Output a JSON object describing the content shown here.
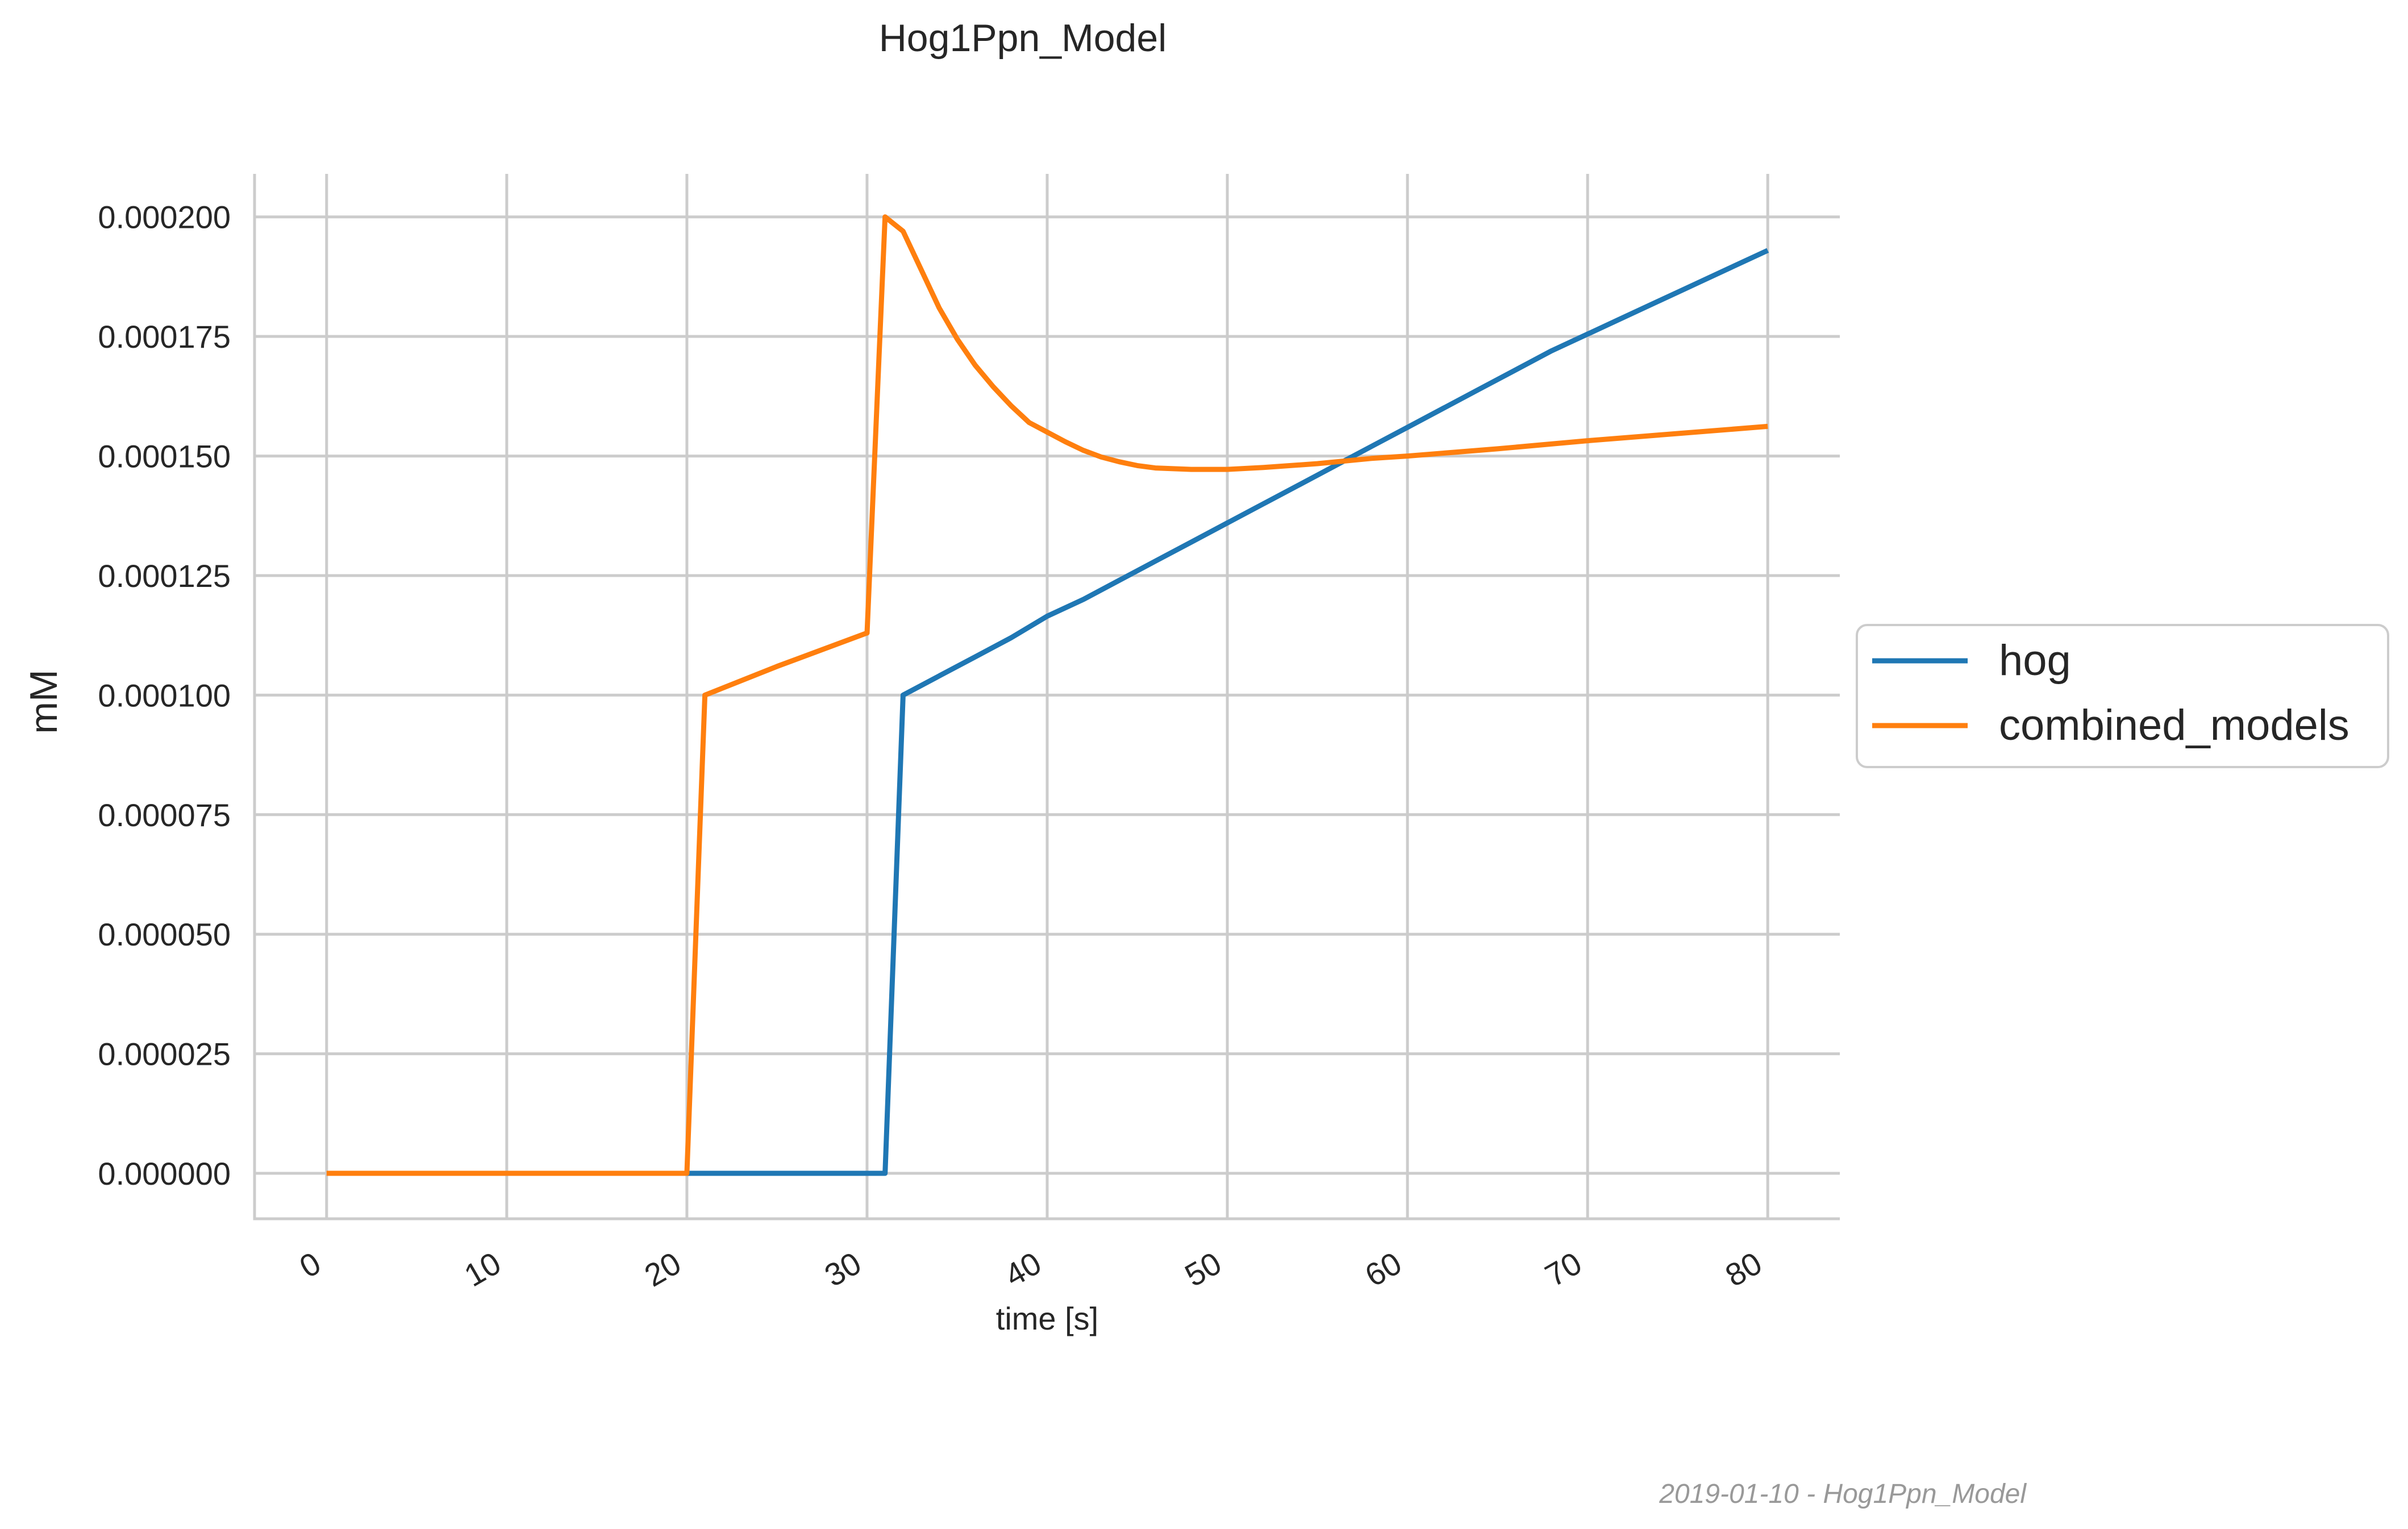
{
  "chart_data": {
    "type": "line",
    "title": "Hog1Ppn_Model",
    "xlabel": "time [s]",
    "ylabel": "mM",
    "xlim": [
      -4,
      84
    ],
    "ylim": [
      -9.5e-06,
      0.000209
    ],
    "x_ticks": [
      0,
      10,
      20,
      30,
      40,
      50,
      60,
      70,
      80
    ],
    "x_tick_labels": [
      "0",
      "10",
      "20",
      "30",
      "40",
      "50",
      "60",
      "70",
      "80"
    ],
    "y_ticks": [
      0,
      2.5e-05,
      5e-05,
      7.5e-05,
      0.0001,
      0.000125,
      0.00015,
      0.000175,
      0.0002
    ],
    "y_tick_labels": [
      "0.000000",
      "0.000025",
      "0.000050",
      "0.000075",
      "0.000100",
      "0.000125",
      "0.000150",
      "0.000175",
      "0.000200"
    ],
    "grid": true,
    "legend_position": "right",
    "series": [
      {
        "name": "hog",
        "color": "#1f77b4",
        "x": [
          20,
          31,
          32,
          34,
          36,
          38,
          40,
          42,
          44,
          46,
          48,
          50,
          52,
          54,
          56,
          58,
          60,
          62,
          64,
          66,
          68,
          70,
          72,
          74,
          76,
          78,
          80
        ],
        "y": [
          0,
          0,
          0.0001,
          0.000104,
          0.000108,
          0.000112,
          0.0001165,
          0.00012,
          0.000124,
          0.000128,
          0.000132,
          0.000136,
          0.00014,
          0.000144,
          0.000148,
          0.000152,
          0.000156,
          0.00016,
          0.000164,
          0.000168,
          0.000172,
          0.0001755,
          0.000179,
          0.0001825,
          0.000186,
          0.0001895,
          0.000193
        ]
      },
      {
        "name": "combined_models",
        "color": "#ff7f0e",
        "x": [
          0,
          20,
          21,
          25,
          30,
          31,
          32,
          33,
          34,
          35,
          36,
          37,
          38,
          39,
          40,
          41,
          42,
          43,
          44,
          45,
          46,
          48,
          50,
          52,
          55,
          58,
          60,
          65,
          70,
          75,
          80
        ],
        "y": [
          0,
          0,
          0.0001,
          0.000106,
          0.000113,
          0.0002,
          0.000197,
          0.000189,
          0.000181,
          0.0001745,
          0.000169,
          0.0001645,
          0.0001605,
          0.000157,
          0.000155,
          0.000153,
          0.0001512,
          0.0001498,
          0.0001488,
          0.000148,
          0.0001475,
          0.0001472,
          0.0001472,
          0.0001476,
          0.0001484,
          0.0001495,
          0.00015,
          0.0001515,
          0.0001532,
          0.0001547,
          0.0001562
        ]
      }
    ]
  },
  "footer": {
    "text": "2019-01-10 - Hog1Ppn_Model"
  }
}
